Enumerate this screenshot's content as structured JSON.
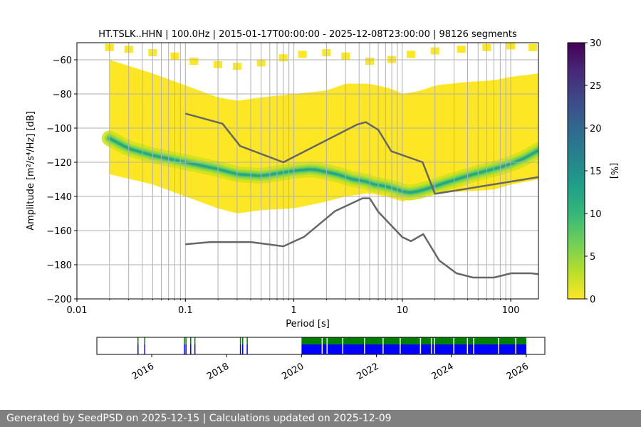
{
  "chart_data": {
    "type": "heatmap",
    "title": "HT.TSLK..HHN | 100.0Hz | 2015-01-17T00:00:00 - 2025-12-08T23:00:00 | 98126 segments",
    "xlabel": "Period [s]",
    "ylabel": "Amplitude [m²/s⁴/Hz] [dB]",
    "xscale": "log",
    "xlim": [
      0.01,
      180
    ],
    "ylim": [
      -200,
      -50
    ],
    "xticks": [
      {
        "value": 0.01,
        "label": "0.01"
      },
      {
        "value": 0.1,
        "label": "0.1"
      },
      {
        "value": 1,
        "label": "1"
      },
      {
        "value": 10,
        "label": "10"
      },
      {
        "value": 100,
        "label": "100"
      }
    ],
    "yticks": [
      {
        "value": -60,
        "label": "−60"
      },
      {
        "value": -80,
        "label": "−80"
      },
      {
        "value": -100,
        "label": "−100"
      },
      {
        "value": -120,
        "label": "−120"
      },
      {
        "value": -140,
        "label": "−140"
      },
      {
        "value": -160,
        "label": "−160"
      },
      {
        "value": -180,
        "label": "−180"
      },
      {
        "value": -200,
        "label": "−200"
      }
    ],
    "grid_periods": [
      0.02,
      0.03,
      0.04,
      0.05,
      0.06,
      0.07,
      0.08,
      0.09,
      0.1,
      0.2,
      0.3,
      0.4,
      0.5,
      0.6,
      0.7,
      0.8,
      0.9,
      1,
      2,
      3,
      4,
      5,
      6,
      7,
      8,
      9,
      10,
      20,
      30,
      40,
      50,
      60,
      70,
      80,
      90,
      100
    ],
    "psd_period_range": [
      0.02,
      180
    ],
    "mode_curve": {
      "period": [
        0.02,
        0.03,
        0.05,
        0.1,
        0.2,
        0.3,
        0.5,
        0.8,
        1.0,
        1.5,
        2.5,
        3.5,
        4.5,
        5.5,
        7,
        9,
        11,
        14,
        18,
        25,
        40,
        60,
        90,
        130,
        180
      ],
      "amplitude": [
        -106,
        -112,
        -116,
        -120,
        -124,
        -127,
        -128,
        -126,
        -125,
        -124,
        -127,
        -130,
        -131,
        -133,
        -134,
        -136,
        -138,
        -137,
        -135,
        -132,
        -128,
        -125,
        -122,
        -118,
        -113
      ]
    },
    "distribution_band": {
      "period": [
        0.02,
        0.05,
        0.1,
        0.2,
        0.3,
        0.5,
        1,
        2,
        3,
        5,
        8,
        10,
        15,
        20,
        40,
        70,
        100,
        180
      ],
      "upper": [
        -60,
        -68,
        -75,
        -82,
        -84,
        -82,
        -80,
        -78,
        -74,
        -74,
        -77,
        -80,
        -78,
        -75,
        -73,
        -72,
        -70,
        -68
      ],
      "lower": [
        -127,
        -133,
        -140,
        -147,
        -150,
        -148,
        -147,
        -143,
        -140,
        -138,
        -141,
        -143,
        -140,
        -138,
        -137,
        -136,
        -133,
        -130
      ]
    },
    "sparse_upper_points": {
      "period": [
        0.02,
        0.03,
        0.05,
        0.08,
        0.12,
        0.2,
        0.3,
        0.5,
        0.8,
        1.2,
        2,
        3,
        5,
        8,
        12,
        20,
        35,
        60,
        100,
        160
      ],
      "amplitude": [
        -52,
        -53,
        -55,
        -57,
        -60,
        -62,
        -63,
        -61,
        -58,
        -56,
        -55,
        -57,
        -60,
        -59,
        -56,
        -54,
        -53,
        -52,
        -51,
        -52
      ]
    },
    "noise_models": [
      {
        "name": "high-noise-model",
        "period": [
          0.1,
          0.22,
          0.32,
          0.8,
          3.8,
          4.6,
          6,
          7.9,
          15.4,
          20,
          180
        ],
        "amplitude": [
          -91.5,
          -97.4,
          -110.5,
          -120,
          -98,
          -96.5,
          -101,
          -113.5,
          -120,
          -138.5,
          -128.7
        ]
      },
      {
        "name": "low-noise-model",
        "period": [
          0.1,
          0.17,
          0.4,
          0.8,
          1.24,
          2.4,
          4.3,
          5,
          6,
          10,
          12,
          15.6,
          21.9,
          31.6,
          45,
          70,
          101,
          154,
          180
        ],
        "amplitude": [
          -168,
          -166.7,
          -166.7,
          -169.2,
          -163.7,
          -148.6,
          -141.1,
          -141.1,
          -149,
          -163.8,
          -166.2,
          -162.1,
          -177.5,
          -185,
          -187.5,
          -187.5,
          -185,
          -185,
          -185.5
        ]
      }
    ],
    "colorbar": {
      "label": "[%]",
      "range": [
        0,
        30
      ],
      "ticks": [
        {
          "value": 0,
          "label": "0"
        },
        {
          "value": 5,
          "label": "5"
        },
        {
          "value": 10,
          "label": "10"
        },
        {
          "value": 15,
          "label": "15"
        },
        {
          "value": 20,
          "label": "20"
        },
        {
          "value": 25,
          "label": "25"
        },
        {
          "value": 30,
          "label": "30"
        }
      ],
      "colors": [
        "#fde725",
        "#b5de2b",
        "#6ece58",
        "#35b779",
        "#1f9e89",
        "#26828e",
        "#31688e",
        "#3e4989",
        "#482878",
        "#440154"
      ]
    },
    "data_availability": {
      "xlim": [
        "2014-07-15",
        "2026-07-01"
      ],
      "xticks": [
        {
          "value": "2016-01-01",
          "label": "2016"
        },
        {
          "value": "2018-01-01",
          "label": "2018"
        },
        {
          "value": "2020-01-01",
          "label": "2020"
        },
        {
          "value": "2022-01-01",
          "label": "2022"
        },
        {
          "value": "2024-01-01",
          "label": "2024"
        },
        {
          "value": "2026-01-01",
          "label": "2026"
        }
      ],
      "color_available": "#008000",
      "color_used": "#0000ff",
      "main_block": [
        "2020-01-01",
        "2026-01-01"
      ],
      "early_segments": [
        "2015-08-15",
        "2015-10-20",
        "2016-11-10",
        "2016-11-25",
        "2017-01-10",
        "2017-02-20",
        "2018-05-10",
        "2018-06-01",
        "2018-07-15"
      ],
      "gaps": [
        "2020-07-15",
        "2020-09-01",
        "2021-02-01",
        "2021-09-01",
        "2022-03-01",
        "2022-08-15",
        "2023-03-01",
        "2023-06-15",
        "2023-07-15",
        "2024-01-20",
        "2024-06-01",
        "2024-08-01",
        "2025-04-01",
        "2025-09-15"
      ]
    }
  },
  "footer": {
    "text": "Generated by SeedPSD on 2025-12-15 | Calculations updated on 2025-12-09"
  }
}
